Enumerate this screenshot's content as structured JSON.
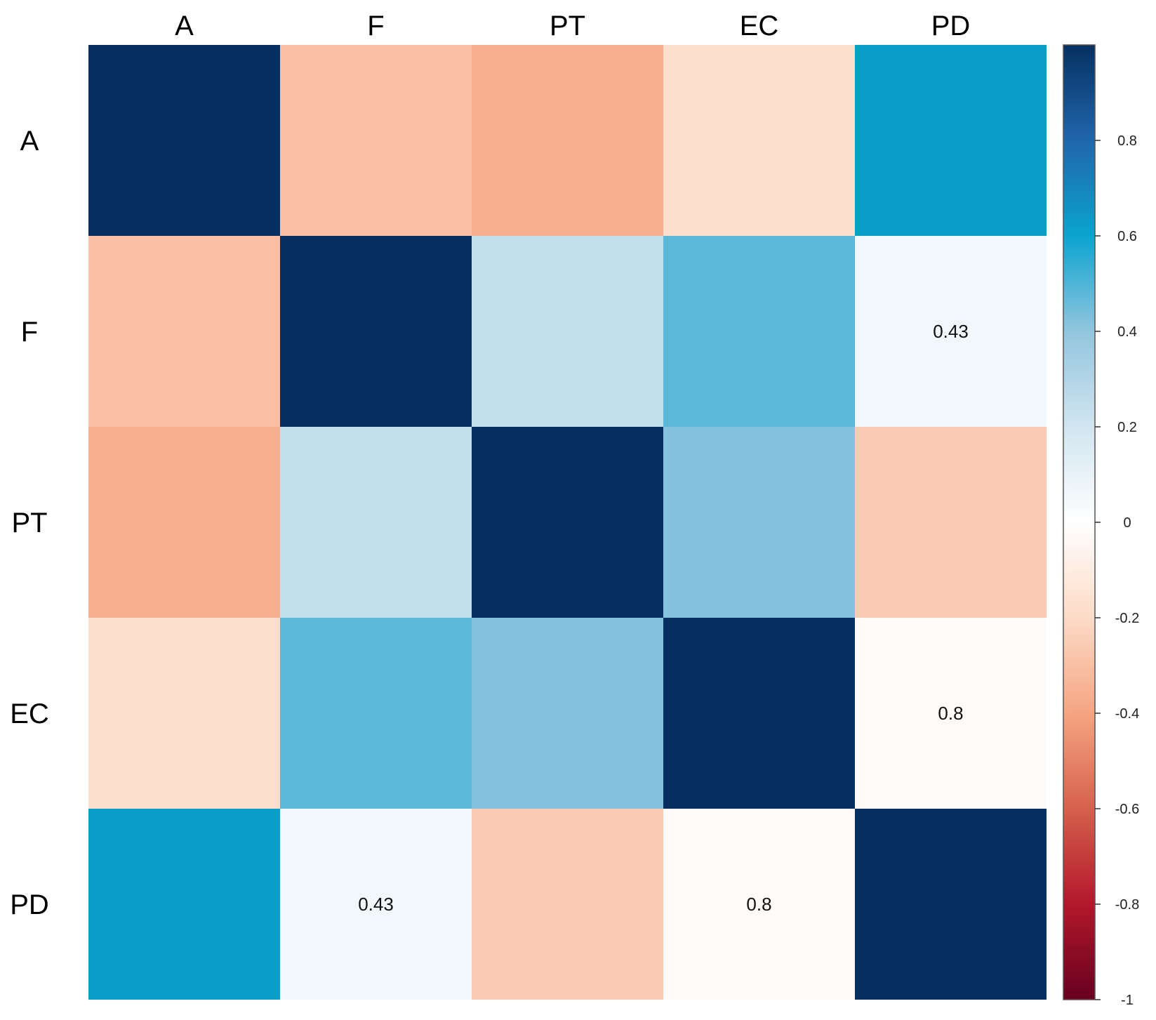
{
  "chart_data": {
    "type": "heatmap",
    "title": "",
    "row_labels": [
      "A",
      "F",
      "PT",
      "EC",
      "PD"
    ],
    "col_labels": [
      "A",
      "F",
      "PT",
      "EC",
      "PD"
    ],
    "values": [
      [
        1.0,
        -0.3,
        -0.36,
        -0.18,
        0.62
      ],
      [
        -0.3,
        1.0,
        0.24,
        0.48,
        0.06
      ],
      [
        -0.36,
        0.24,
        1.0,
        0.42,
        -0.26
      ],
      [
        -0.18,
        0.48,
        0.42,
        1.0,
        -0.02
      ],
      [
        0.62,
        0.06,
        -0.26,
        -0.02,
        1.0
      ]
    ],
    "cell_labels": [
      [
        "",
        "",
        "",
        "",
        ""
      ],
      [
        "",
        "",
        "",
        "",
        "0.43"
      ],
      [
        "",
        "",
        "",
        "",
        ""
      ],
      [
        "",
        "",
        "",
        "",
        "0.8"
      ],
      [
        "",
        "0.43",
        "",
        "0.8",
        ""
      ]
    ],
    "colorbar": {
      "range": [
        -1,
        1
      ],
      "ticks": [
        {
          "value": 0.8,
          "label": "0.8"
        },
        {
          "value": 0.6,
          "label": "0.6"
        },
        {
          "value": 0.4,
          "label": "0.4"
        },
        {
          "value": 0.2,
          "label": "0.2"
        },
        {
          "value": 0,
          "label": "0"
        },
        {
          "value": -0.2,
          "label": "-0.2"
        },
        {
          "value": -0.4,
          "label": "-0.4"
        },
        {
          "value": -0.6,
          "label": "-0.6"
        },
        {
          "value": -0.8,
          "label": "-0.8"
        },
        {
          "value": -1,
          "label": "-1"
        }
      ],
      "colors": [
        "#67001f",
        "#b2182b",
        "#d6604d",
        "#f4a582",
        "#fddbc7",
        "#ffffff",
        "#d1e5f0",
        "#92c5de",
        "#0aa4cf",
        "#2166ac",
        "#053061"
      ],
      "placement": "right"
    }
  }
}
